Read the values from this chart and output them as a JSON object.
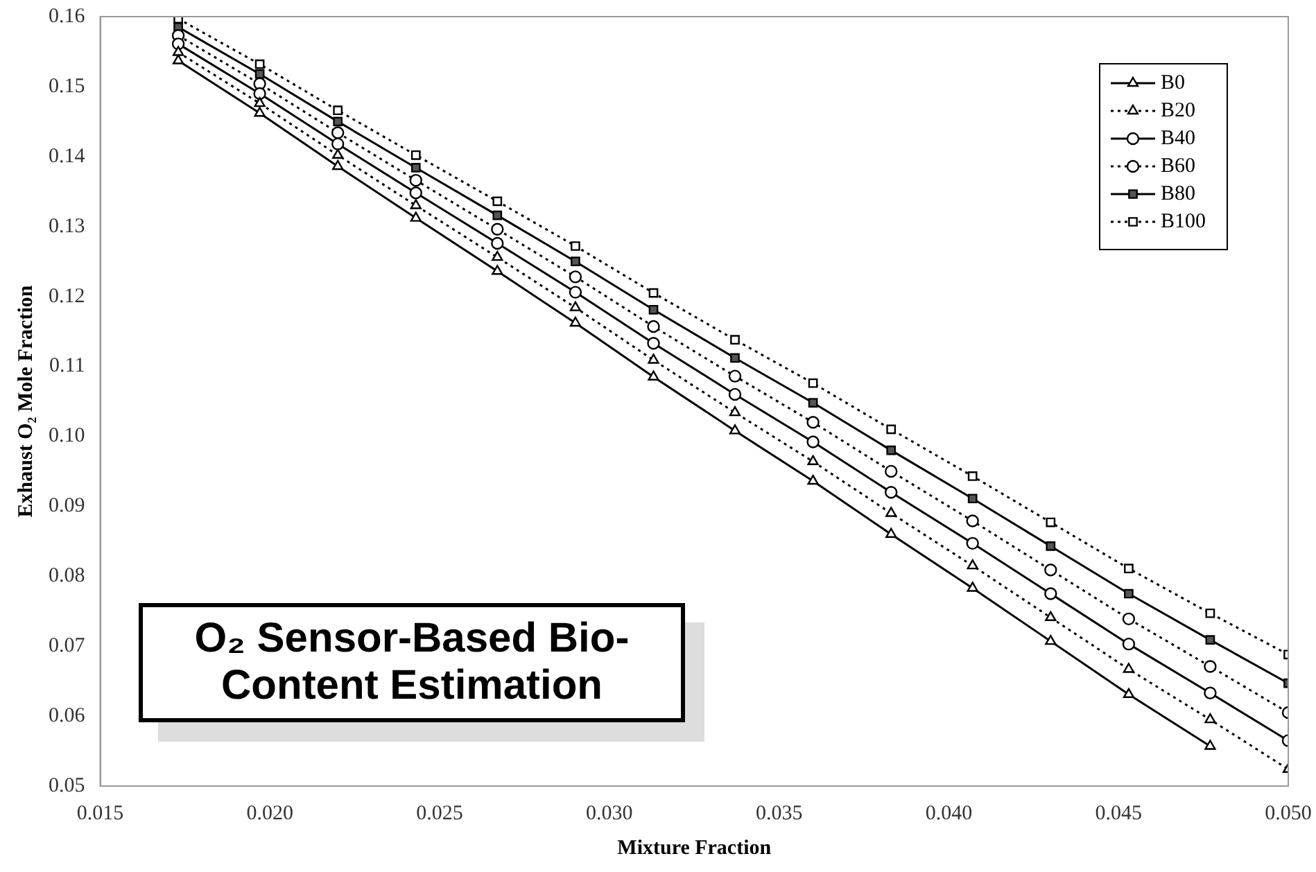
{
  "chart_data": {
    "type": "line",
    "xlabel": "Mixture Fraction",
    "ylabel": "Exhaust O₂ Mole Fraction",
    "annotations": [
      "O₂ Sensor-Based Bio-Content Estimation"
    ],
    "x": [
      0.0173,
      0.0197,
      0.022,
      0.0243,
      0.0267,
      0.029,
      0.0313,
      0.0337,
      0.036,
      0.0383,
      0.0407,
      0.043,
      0.0453,
      0.0477,
      0.05
    ],
    "xlim": [
      0.015,
      0.05
    ],
    "xticks": [
      0.015,
      {
        "value": 0.02,
        "label": "0.020"
      },
      0.025,
      {
        "value": 0.03,
        "label": "0.030"
      },
      0.035,
      {
        "value": 0.04,
        "label": "0.040"
      },
      0.045,
      {
        "value": 0.05,
        "label": "0.050"
      }
    ],
    "ylim": [
      0.05,
      0.16
    ],
    "yticks": [
      0.05,
      0.06,
      0.07,
      0.08,
      0.09,
      {
        "value": 0.1,
        "label": "0.10"
      },
      0.11,
      0.12,
      0.13,
      0.14,
      0.15,
      0.16
    ],
    "grid": false,
    "legend": "top right",
    "series": [
      {
        "name": "B0",
        "color": "#000000",
        "marker": "triangle",
        "line_style": "solid",
        "values": [
          0.1537,
          0.1462,
          0.1386,
          0.1312,
          0.1236,
          0.1162,
          0.1085,
          0.1008,
          0.0936,
          0.086,
          0.0783,
          0.0707,
          0.0631,
          0.0557,
          null
        ]
      },
      {
        "name": "B20",
        "color": "#000000",
        "marker": "triangle",
        "line_style": "dotted",
        "values": [
          0.1549,
          0.1476,
          0.1402,
          0.133,
          0.1256,
          0.1184,
          0.1109,
          0.1034,
          0.0964,
          0.089,
          0.0815,
          0.0741,
          0.0667,
          0.0595,
          0.0524
        ]
      },
      {
        "name": "B40",
        "color": "#000000",
        "marker": "circle",
        "line_style": "solid",
        "values": [
          0.1561,
          0.149,
          0.1418,
          0.1348,
          0.1276,
          0.1206,
          0.1133,
          0.106,
          0.0992,
          0.092,
          0.0847,
          0.0775,
          0.0703,
          0.0633,
          0.0565
        ]
      },
      {
        "name": "B60",
        "color": "#000000",
        "marker": "circle",
        "line_style": "dotted",
        "values": [
          0.1573,
          0.1504,
          0.1434,
          0.1366,
          0.1296,
          0.1228,
          0.1157,
          0.1086,
          0.102,
          0.095,
          0.0879,
          0.0809,
          0.0739,
          0.0671,
          0.0605
        ]
      },
      {
        "name": "B80",
        "color": "#000000",
        "marker": "square",
        "line_style": "solid",
        "values": [
          0.1585,
          0.1518,
          0.145,
          0.1384,
          0.1316,
          0.125,
          0.1181,
          0.1112,
          0.1048,
          0.098,
          0.0911,
          0.0843,
          0.0775,
          0.0709,
          0.0647
        ]
      },
      {
        "name": "B100",
        "color": "#000000",
        "marker": "square",
        "line_style": "dotted",
        "values": [
          0.1597,
          0.1532,
          0.1466,
          0.1402,
          0.1336,
          0.1272,
          0.1205,
          0.1138,
          0.1076,
          0.101,
          0.0943,
          0.0877,
          0.0811,
          0.0747,
          0.0688
        ]
      }
    ]
  }
}
